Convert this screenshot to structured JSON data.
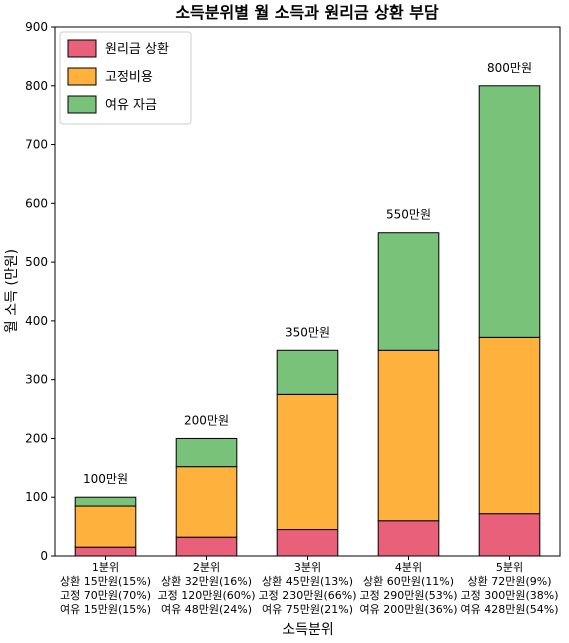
{
  "chart_data": {
    "type": "bar",
    "stacked": true,
    "title": "소득분위별 월 소득과 원리금 상환 부담",
    "xlabel": "소득분위",
    "ylabel": "월 소득 (만원)",
    "ylim": [
      0,
      900
    ],
    "yticks": [
      0,
      100,
      200,
      300,
      400,
      500,
      600,
      700,
      800,
      900
    ],
    "grid": false,
    "legend_position": "top-left",
    "categories": [
      "1분위",
      "2분위",
      "3분위",
      "4분위",
      "5분위"
    ],
    "category_lines": [
      [
        "1분위",
        "상환 15만원(15%)",
        "고정 70만원(70%)",
        "여유 15만원(15%)"
      ],
      [
        "2분위",
        "상환 32만원(16%)",
        "고정 120만원(60%)",
        "여유 48만원(24%)"
      ],
      [
        "3분위",
        "상환 45만원(13%)",
        "고정 230만원(66%)",
        "여유 75만원(21%)"
      ],
      [
        "4분위",
        "상환 60만원(11%)",
        "고정 290만원(53%)",
        "여유 200만원(36%)"
      ],
      [
        "5분위",
        "상환 72만원(9%)",
        "고정 300만원(38%)",
        "여유 428만원(54%)"
      ]
    ],
    "series": [
      {
        "name": "원리금 상환",
        "values": [
          15,
          32,
          45,
          60,
          72
        ],
        "color": "#e8607a"
      },
      {
        "name": "고정비용",
        "values": [
          70,
          120,
          230,
          290,
          300
        ],
        "color": "#ffb13d"
      },
      {
        "name": "여유 자금",
        "values": [
          15,
          48,
          75,
          200,
          428
        ],
        "color": "#79c27a"
      }
    ],
    "totals": [
      100,
      200,
      350,
      550,
      800
    ],
    "total_labels": [
      "100만원",
      "200만원",
      "350만원",
      "550만원",
      "800만원"
    ]
  }
}
